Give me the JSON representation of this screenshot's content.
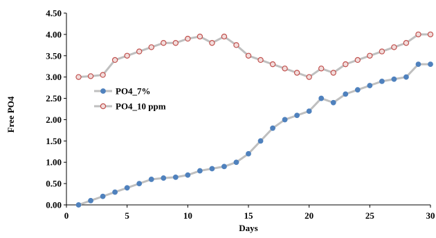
{
  "chart_data": {
    "type": "line",
    "xlabel": "Days",
    "ylabel": "Free PO4",
    "xlim": [
      0,
      30
    ],
    "ylim": [
      0,
      4.5
    ],
    "x_ticks": [
      0,
      5,
      10,
      15,
      20,
      25,
      30
    ],
    "y_ticks": [
      0,
      0.5,
      1,
      1.5,
      2,
      2.5,
      3,
      3.5,
      4,
      4.5
    ],
    "y_tick_labels": [
      "0.00",
      "0.50",
      "1.00",
      "1.50",
      "2.00",
      "2.50",
      "3.00",
      "3.50",
      "4.00",
      "4.50"
    ],
    "grid": false,
    "legend_position": "left-middle",
    "x": [
      1,
      2,
      3,
      4,
      5,
      6,
      7,
      8,
      9,
      10,
      11,
      12,
      13,
      14,
      15,
      16,
      17,
      18,
      19,
      20,
      21,
      22,
      23,
      24,
      25,
      26,
      27,
      28,
      29,
      30
    ],
    "series": [
      {
        "name": "PO4_7%",
        "marker": "filled-circle",
        "marker_color": "#4F81BD",
        "line_color": "#BFBFBF",
        "values": [
          0.0,
          0.1,
          0.2,
          0.3,
          0.4,
          0.5,
          0.6,
          0.63,
          0.65,
          0.7,
          0.8,
          0.85,
          0.9,
          1.0,
          1.2,
          1.5,
          1.8,
          2.0,
          2.1,
          2.2,
          2.5,
          2.4,
          2.6,
          2.7,
          2.8,
          2.9,
          2.95,
          3.0,
          3.3,
          3.3
        ]
      },
      {
        "name": "PO4_10 ppm",
        "marker": "open-circle",
        "marker_color": "#C0504D",
        "marker_fill": "#F2DCDB",
        "line_color": "#BFBFBF",
        "values": [
          3.0,
          3.02,
          3.05,
          3.4,
          3.5,
          3.6,
          3.7,
          3.8,
          3.8,
          3.9,
          3.95,
          3.8,
          3.95,
          3.75,
          3.5,
          3.4,
          3.3,
          3.2,
          3.1,
          3.0,
          3.2,
          3.1,
          3.3,
          3.4,
          3.5,
          3.6,
          3.7,
          3.8,
          4.0,
          4.0
        ]
      }
    ]
  }
}
